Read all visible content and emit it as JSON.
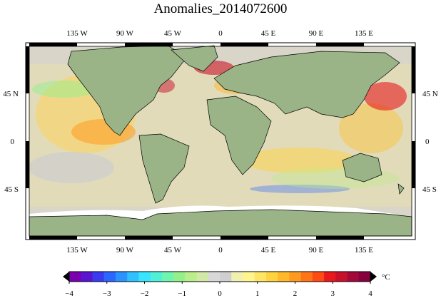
{
  "title": "Anomalies_2014072600",
  "lon_labels": [
    "135 W",
    "90 W",
    "45 W",
    "0",
    "45 E",
    "90 E",
    "135 E"
  ],
  "lat_labels": [
    "45 N",
    "0",
    "45 S"
  ],
  "colorbar": {
    "unit": "°C",
    "ticks": [
      "−4",
      "−3",
      "−2",
      "−1",
      "0",
      "1",
      "2",
      "3",
      "4"
    ],
    "range": [
      -4,
      4
    ],
    "colors": [
      "#7a00b0",
      "#5a14d0",
      "#3a3af0",
      "#2a66ff",
      "#2a93ff",
      "#2ec0ff",
      "#38e4ff",
      "#4ff0d8",
      "#6ef5b0",
      "#95f08c",
      "#b9ee8a",
      "#d2e8a6",
      "#d8d8d8",
      "#cfcfcf",
      "#f1f0b0",
      "#fff58f",
      "#ffe566",
      "#ffd340",
      "#ffb82a",
      "#ff9a1e",
      "#ff7516",
      "#ff4a14",
      "#e8181c",
      "#c8102a",
      "#a3083a",
      "#860040"
    ]
  },
  "map_colors": {
    "land": "#99b489",
    "ocean_base": "#d8d0c0",
    "ice": "#ffffff"
  }
}
